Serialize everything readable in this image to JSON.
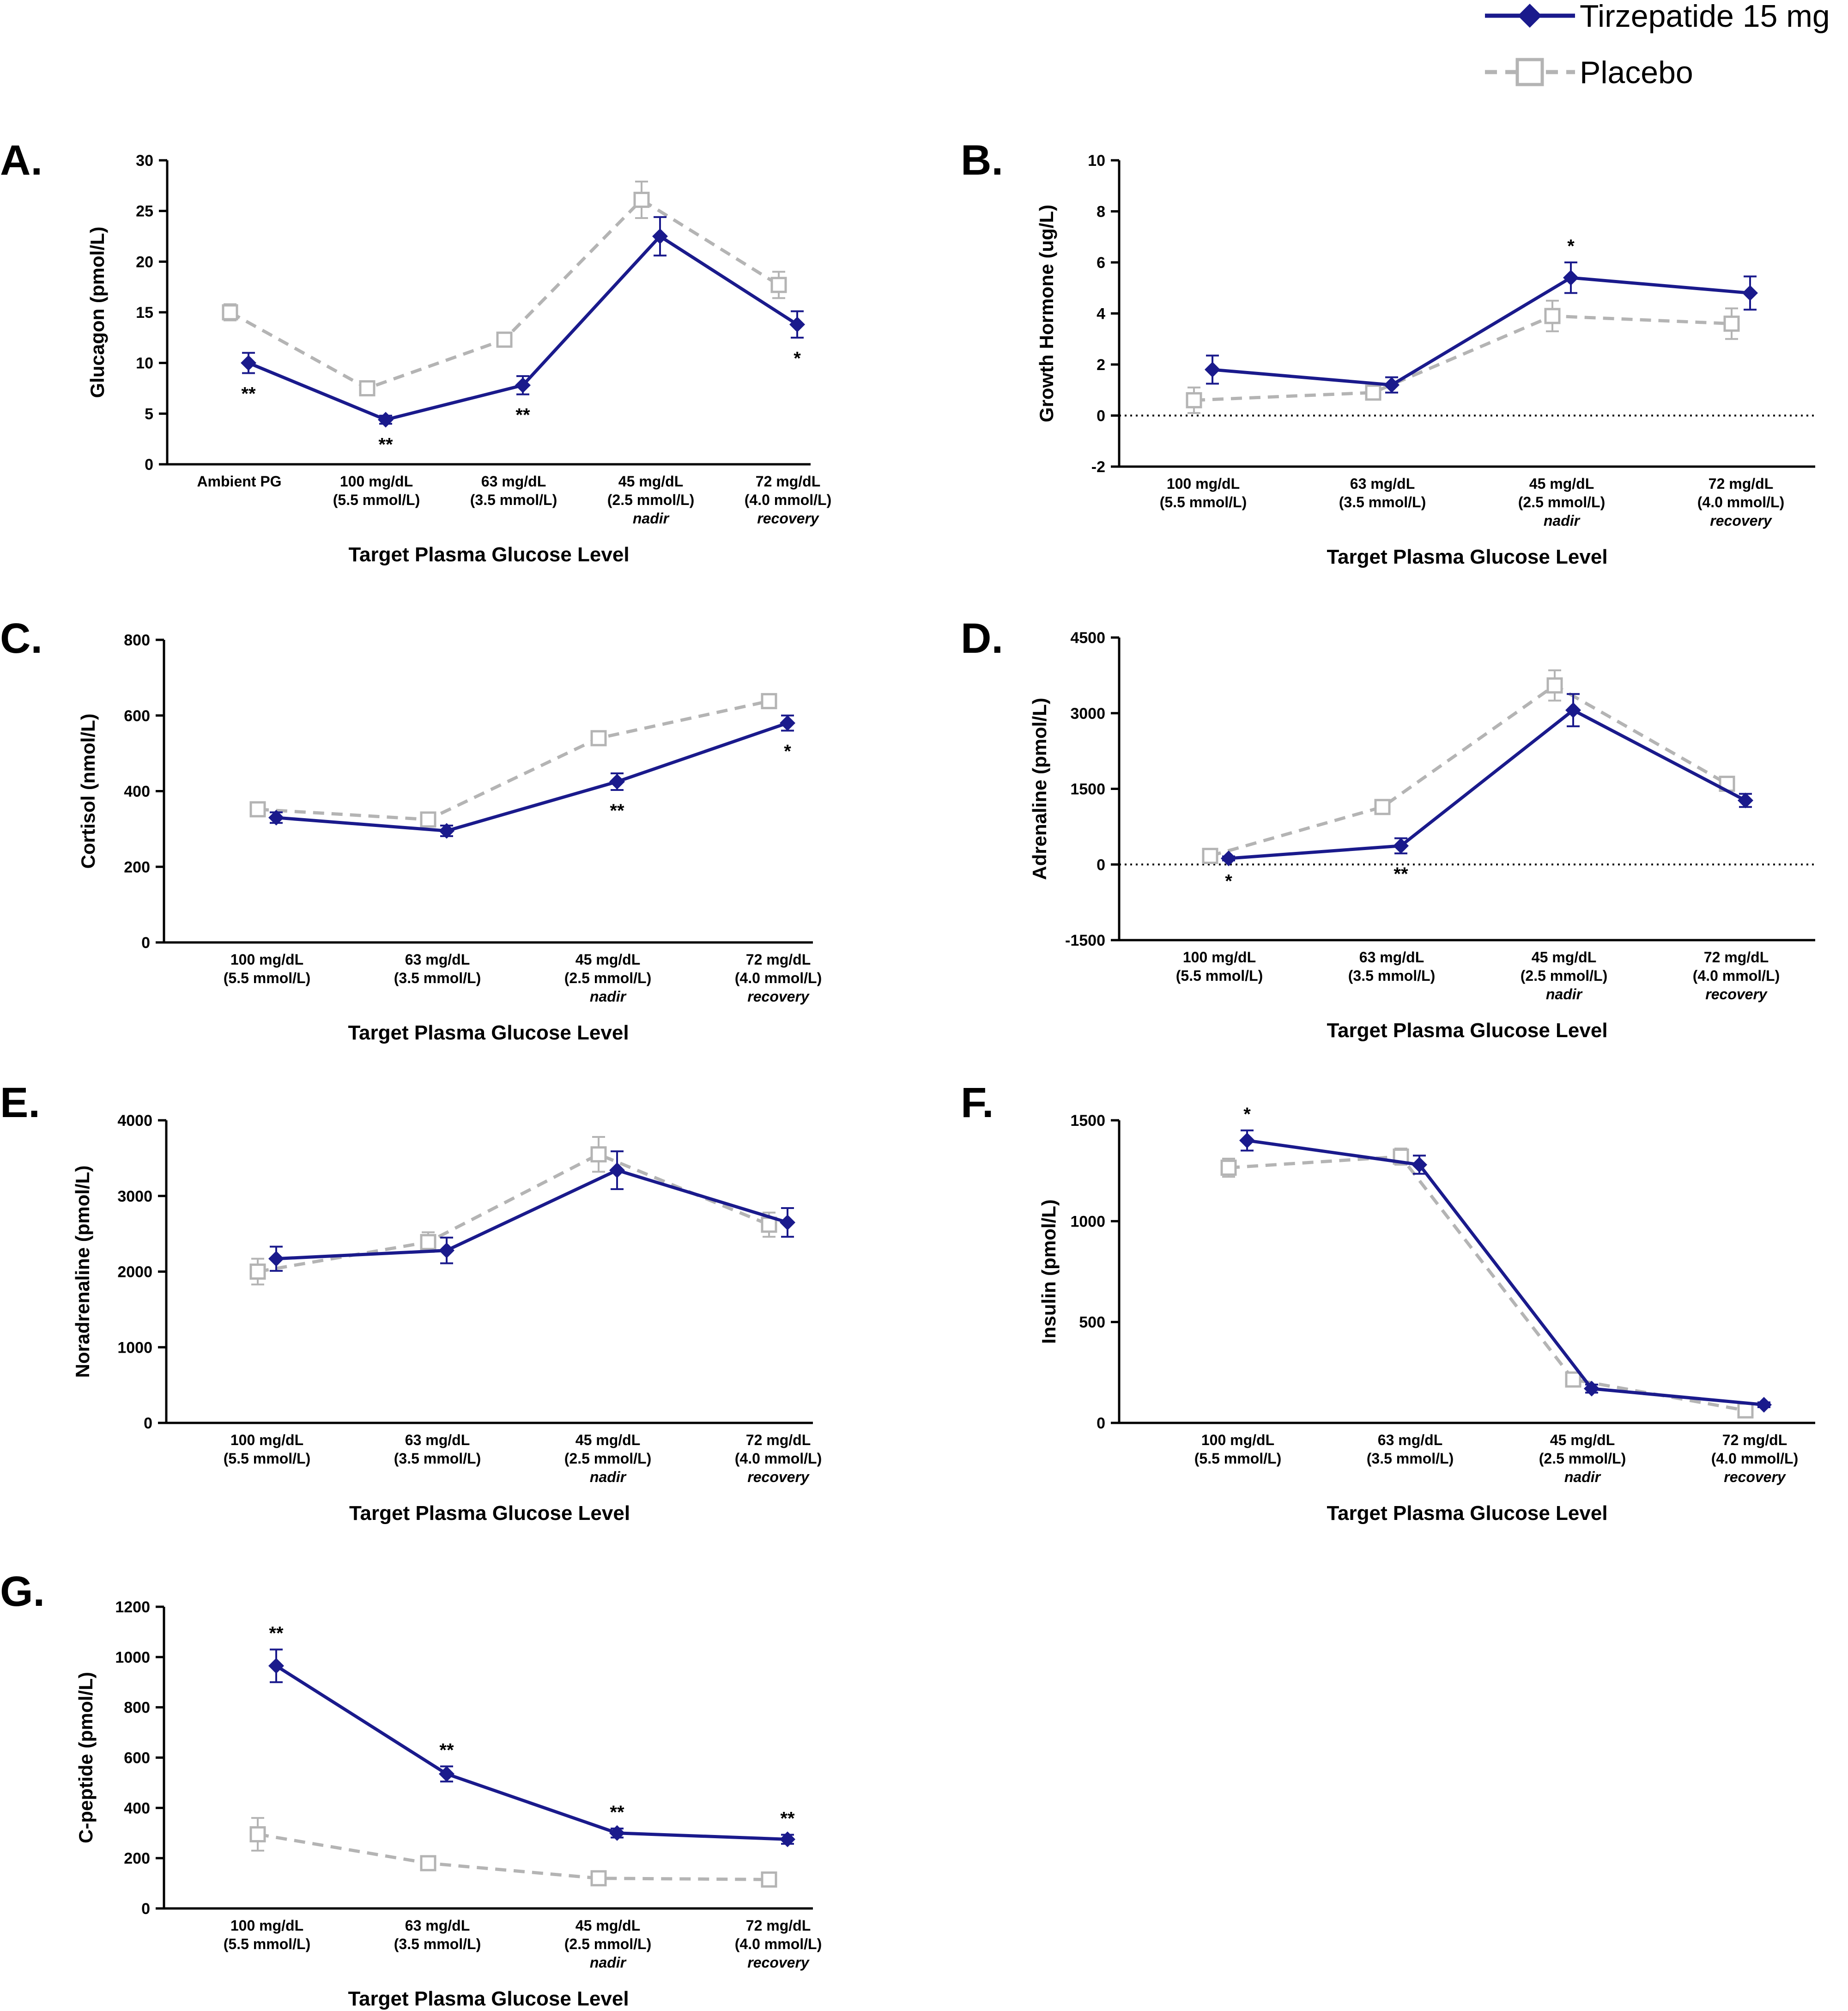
{
  "legend": {
    "tirzepatide": "Tirzepatide 15 mg",
    "placebo": "Placebo"
  },
  "colors": {
    "tirzepatide": "#1a1a8c",
    "placebo": "#b4b4b4"
  },
  "chart_data": [
    {
      "id": "A",
      "panel_label": "A.",
      "type": "line",
      "ylabel": "Glucagon (pmol/L)",
      "xlabel": "Target Plasma Glucose Level",
      "ylim": [
        0,
        30
      ],
      "yticks": [
        "0",
        "5",
        "10",
        "15",
        "20",
        "25",
        "30"
      ],
      "categories": [
        {
          "lines": [
            "Ambient PG"
          ],
          "italic": ""
        },
        {
          "lines": [
            "100 mg/dL",
            "(5.5 mmol/L)"
          ],
          "italic": ""
        },
        {
          "lines": [
            "63 mg/dL",
            "(3.5 mmol/L)"
          ],
          "italic": ""
        },
        {
          "lines": [
            "45 mg/dL",
            "(2.5 mmol/L)"
          ],
          "italic": "nadir"
        },
        {
          "lines": [
            "72 mg/dL",
            "(4.0 mmol/L)"
          ],
          "italic": "recovery"
        }
      ],
      "zero_line": false,
      "series": [
        {
          "name": "Tirzepatide 15 mg",
          "values": [
            10,
            4.4,
            7.8,
            22.5,
            13.8
          ],
          "err": [
            1.0,
            0.4,
            0.9,
            1.9,
            1.3
          ]
        },
        {
          "name": "Placebo",
          "values": [
            15,
            7.5,
            12.3,
            26.1,
            17.7
          ],
          "err": [
            0.8,
            0.4,
            0.7,
            1.8,
            1.3
          ]
        }
      ],
      "significance": [
        {
          "index": 0,
          "label": "**",
          "pos": "below"
        },
        {
          "index": 1,
          "label": "**",
          "pos": "below"
        },
        {
          "index": 2,
          "label": "**",
          "pos": "below"
        },
        {
          "index": 4,
          "label": "*",
          "pos": "below"
        }
      ]
    },
    {
      "id": "B",
      "panel_label": "B.",
      "type": "line",
      "ylabel": "Growth Hormone (ug/L)",
      "xlabel": "Target Plasma Glucose Level",
      "ylim": [
        -2,
        10
      ],
      "yticks": [
        "-2",
        "0",
        "2",
        "4",
        "6",
        "8",
        "10"
      ],
      "categories": [
        {
          "lines": [
            "100 mg/dL",
            "(5.5 mmol/L)"
          ],
          "italic": ""
        },
        {
          "lines": [
            "63 mg/dL",
            "(3.5 mmol/L)"
          ],
          "italic": ""
        },
        {
          "lines": [
            "45 mg/dL",
            "(2.5 mmol/L)"
          ],
          "italic": "nadir"
        },
        {
          "lines": [
            "72 mg/dL",
            "(4.0 mmol/L)"
          ],
          "italic": "recovery"
        }
      ],
      "zero_line": true,
      "series": [
        {
          "name": "Tirzepatide 15 mg",
          "values": [
            1.8,
            1.2,
            5.4,
            4.8
          ],
          "err": [
            0.55,
            0.3,
            0.6,
            0.65
          ]
        },
        {
          "name": "Placebo",
          "values": [
            0.6,
            0.9,
            3.9,
            3.6
          ],
          "err": [
            0.5,
            0.25,
            0.6,
            0.6
          ]
        }
      ],
      "significance": [
        {
          "index": 2,
          "label": "*",
          "pos": "above"
        }
      ]
    },
    {
      "id": "C",
      "panel_label": "C.",
      "type": "line",
      "ylabel": "Cortisol (nmol/L)",
      "xlabel": "Target Plasma Glucose Level",
      "ylim": [
        0,
        800
      ],
      "yticks": [
        "0",
        "200",
        "400",
        "600",
        "800"
      ],
      "categories": [
        {
          "lines": [
            "100 mg/dL",
            "(5.5 mmol/L)"
          ],
          "italic": ""
        },
        {
          "lines": [
            "63 mg/dL",
            "(3.5 mmol/L)"
          ],
          "italic": ""
        },
        {
          "lines": [
            "45 mg/dL",
            "(2.5 mmol/L)"
          ],
          "italic": "nadir"
        },
        {
          "lines": [
            "72 mg/dL",
            "(4.0 mmol/L)"
          ],
          "italic": "recovery"
        }
      ],
      "zero_line": false,
      "series": [
        {
          "name": "Tirzepatide 15 mg",
          "values": [
            330,
            295,
            425,
            580
          ],
          "err": [
            14,
            14,
            22,
            20
          ]
        },
        {
          "name": "Placebo",
          "values": [
            352,
            325,
            540,
            638
          ],
          "err": [
            10,
            12,
            18,
            14
          ]
        }
      ],
      "significance": [
        {
          "index": 2,
          "label": "**",
          "pos": "below"
        },
        {
          "index": 3,
          "label": "*",
          "pos": "below"
        }
      ]
    },
    {
      "id": "D",
      "panel_label": "D.",
      "type": "line",
      "ylabel": "Adrenaline (pmol/L)",
      "xlabel": "Target Plasma Glucose Level",
      "ylim": [
        -1500,
        4500
      ],
      "yticks": [
        "-1500",
        "0",
        "1500",
        "3000",
        "4500"
      ],
      "categories": [
        {
          "lines": [
            "100 mg/dL",
            "(5.5 mmol/L)"
          ],
          "italic": ""
        },
        {
          "lines": [
            "63 mg/dL",
            "(3.5 mmol/L)"
          ],
          "italic": ""
        },
        {
          "lines": [
            "45 mg/dL",
            "(2.5 mmol/L)"
          ],
          "italic": "nadir"
        },
        {
          "lines": [
            "72 mg/dL",
            "(4.0 mmol/L)"
          ],
          "italic": "recovery"
        }
      ],
      "zero_line": true,
      "series": [
        {
          "name": "Tirzepatide 15 mg",
          "values": [
            120,
            370,
            3060,
            1270
          ],
          "err": [
            40,
            150,
            320,
            130
          ]
        },
        {
          "name": "Placebo",
          "values": [
            170,
            1140,
            3550,
            1600
          ],
          "err": [
            50,
            110,
            300,
            90
          ]
        }
      ],
      "significance": [
        {
          "index": 0,
          "label": "*",
          "pos": "below"
        },
        {
          "index": 1,
          "label": "**",
          "pos": "below"
        }
      ]
    },
    {
      "id": "E",
      "panel_label": "E.",
      "type": "line",
      "ylabel": "Noradrenaline (pmol/L)",
      "xlabel": "Target Plasma Glucose Level",
      "ylim": [
        0,
        4000
      ],
      "yticks": [
        "0",
        "1000",
        "2000",
        "3000",
        "4000"
      ],
      "categories": [
        {
          "lines": [
            "100 mg/dL",
            "(5.5 mmol/L)"
          ],
          "italic": ""
        },
        {
          "lines": [
            "63 mg/dL",
            "(3.5 mmol/L)"
          ],
          "italic": ""
        },
        {
          "lines": [
            "45 mg/dL",
            "(2.5 mmol/L)"
          ],
          "italic": "nadir"
        },
        {
          "lines": [
            "72 mg/dL",
            "(4.0 mmol/L)"
          ],
          "italic": "recovery"
        }
      ],
      "zero_line": false,
      "series": [
        {
          "name": "Tirzepatide 15 mg",
          "values": [
            2170,
            2280,
            3340,
            2650
          ],
          "err": [
            160,
            170,
            250,
            190
          ]
        },
        {
          "name": "Placebo",
          "values": [
            2000,
            2390,
            3550,
            2620
          ],
          "err": [
            170,
            130,
            230,
            160
          ]
        }
      ],
      "significance": []
    },
    {
      "id": "F",
      "panel_label": "F.",
      "type": "line",
      "ylabel": "Insulin (pmol/L)",
      "xlabel": "Target Plasma Glucose Level",
      "ylim": [
        0,
        1500
      ],
      "yticks": [
        "0",
        "500",
        "1000",
        "1500"
      ],
      "categories": [
        {
          "lines": [
            "100 mg/dL",
            "(5.5 mmol/L)"
          ],
          "italic": ""
        },
        {
          "lines": [
            "63 mg/dL",
            "(3.5 mmol/L)"
          ],
          "italic": ""
        },
        {
          "lines": [
            "45 mg/dL",
            "(2.5 mmol/L)"
          ],
          "italic": "nadir"
        },
        {
          "lines": [
            "72 mg/dL",
            "(4.0 mmol/L)"
          ],
          "italic": "recovery"
        }
      ],
      "zero_line": false,
      "series": [
        {
          "name": "Tirzepatide 15 mg",
          "values": [
            1400,
            1280,
            170,
            90
          ],
          "err": [
            50,
            45,
            20,
            12
          ]
        },
        {
          "name": "Placebo",
          "values": [
            1265,
            1320,
            215,
            62
          ],
          "err": [
            45,
            40,
            15,
            8
          ]
        }
      ],
      "significance": [
        {
          "index": 0,
          "label": "*",
          "pos": "above"
        }
      ]
    },
    {
      "id": "G",
      "panel_label": "G.",
      "type": "line",
      "ylabel": "C-peptide (pmol/L)",
      "xlabel": "Target Plasma Glucose Level",
      "ylim": [
        0,
        1200
      ],
      "yticks": [
        "0",
        "200",
        "400",
        "600",
        "800",
        "1000",
        "1200"
      ],
      "categories": [
        {
          "lines": [
            "100 mg/dL",
            "(5.5 mmol/L)"
          ],
          "italic": ""
        },
        {
          "lines": [
            "63 mg/dL",
            "(3.5 mmol/L)"
          ],
          "italic": ""
        },
        {
          "lines": [
            "45 mg/dL",
            "(2.5 mmol/L)"
          ],
          "italic": "nadir"
        },
        {
          "lines": [
            "72 mg/dL",
            "(4.0 mmol/L)"
          ],
          "italic": "recovery"
        }
      ],
      "zero_line": false,
      "series": [
        {
          "name": "Tirzepatide 15 mg",
          "values": [
            965,
            535,
            300,
            275
          ],
          "err": [
            65,
            30,
            18,
            18
          ]
        },
        {
          "name": "Placebo",
          "values": [
            295,
            180,
            120,
            115
          ],
          "err": [
            65,
            25,
            8,
            8
          ]
        }
      ],
      "significance": [
        {
          "index": 0,
          "label": "**",
          "pos": "above"
        },
        {
          "index": 1,
          "label": "**",
          "pos": "above"
        },
        {
          "index": 2,
          "label": "**",
          "pos": "above"
        },
        {
          "index": 3,
          "label": "**",
          "pos": "above"
        }
      ]
    }
  ]
}
